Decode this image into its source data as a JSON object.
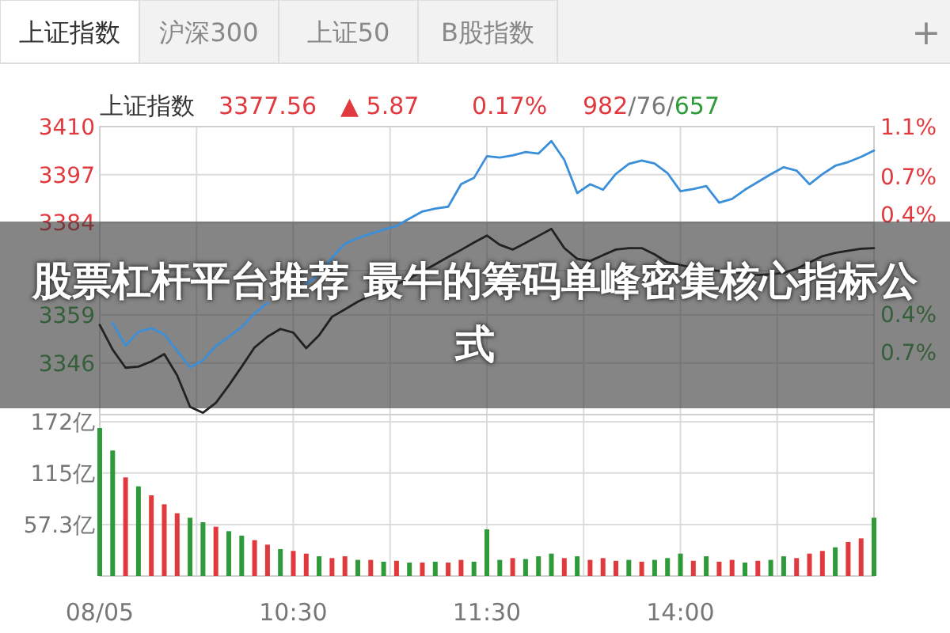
{
  "chart_data": [
    {
      "type": "line",
      "title": "股票杠杆平台推荐 最牛的筹码单峰密集核心指标公式",
      "annotations": [
        "上证指数",
        "沪深300",
        "上证50",
        "B股指数",
        "+",
        "上证指数",
        "3377.56",
        "▲ 5.87",
        "0.17%",
        "982/76/657"
      ],
      "series": [
        {
          "color": "#3b8fd9",
          "values": [
            null,
            3356.8,
            3350.7,
            3354.4,
            3355.4,
            3353.7,
            3349.3,
            3344.8,
            3346.7,
            3350.6,
            3353.1,
            3355.7,
            3359.4,
            3362.3,
            null,
            null,
            3367.4,
            3369.9,
            3374.5,
            3378.3,
            3379.8,
            3381.0,
            3382.1,
            3383.1,
            3385.1,
            3387.0,
            3387.8,
            3388.3,
            3394.4,
            3396.1,
            3402.0,
            3401.6,
            3402.2,
            3403.1,
            3402.7,
            3406.1,
            3401.0,
            3392.0,
            3394.4,
            3392.9,
            3397.2,
            3399.9,
            3400.8,
            3400.0,
            3397.4,
            3392.5,
            3393.1,
            3393.9,
            3389.4,
            3390.4,
            3392.9,
            3395.0,
            3397.1,
            3399.0,
            3398.1,
            3394.4,
            3397.1,
            3399.4,
            3400.4,
            3401.8,
            3403.5
          ]
        },
        {
          "color": "#222222",
          "values": [
            3356.3,
            3349.6,
            3344.7,
            3345.0,
            3346.4,
            3348.4,
            3342.6,
            3334.1,
            3332.5,
            3335.2,
            3339.9,
            3345.0,
            3350.2,
            3353.1,
            3355.2,
            3354.2,
            3350.0,
            3353.5,
            3358.5,
            3360.5,
            3362.6,
            3364.3,
            3365.8,
            3367.3,
            3368.9,
            3370.8,
            3372.7,
            3374.7,
            3376.6,
            3378.6,
            3380.5,
            3378.0,
            3376.7,
            3378.5,
            3380.4,
            3382.3,
            3377.1,
            3374.2,
            3373.6,
            3375.2,
            3376.7,
            3377.1,
            3377.1,
            3375.4,
            3373.2,
            3372.5,
            3371.8,
            3371.2,
            3370.9,
            3370.6,
            3370.2,
            3369.8,
            3370.0,
            3370.4,
            3371.5,
            3373.2,
            3374.9,
            3375.8,
            3376.4,
            3376.9,
            3377.1
          ]
        }
      ],
      "ylim": [
        3332,
        3410
      ],
      "yticks": [
        3410,
        3397,
        3384,
        {
          "value": 3371,
          "label": null
        },
        3359,
        3346
      ],
      "y2lim": [
        -1.2,
        1.1
      ],
      "y2ticks": [
        {
          "value": 1.1,
          "label": "1.1%"
        },
        {
          "value": 0.7,
          "label": "0.7%"
        },
        {
          "value": 0.4,
          "label": "0.4%"
        },
        {
          "value": -0.4,
          "label": "0.4%"
        },
        {
          "value": -0.7,
          "label": "0.7%"
        }
      ],
      "tick_labels": "y",
      "grid": true
    },
    {
      "type": "bar",
      "categories": [
        "08/05",
        null,
        null,
        null,
        null,
        null,
        null,
        null,
        null,
        null,
        null,
        null,
        null,
        null,
        null,
        "10:30",
        null,
        null,
        null,
        null,
        null,
        null,
        null,
        null,
        null,
        null,
        null,
        null,
        null,
        null,
        "11:30",
        null,
        null,
        null,
        null,
        null,
        null,
        null,
        null,
        null,
        null,
        null,
        null,
        null,
        null,
        "14:00",
        null,
        null,
        null,
        null,
        null,
        null,
        null,
        null,
        null,
        null,
        null,
        null,
        null,
        null,
        null
      ],
      "values": [
        165,
        140,
        110,
        100,
        90,
        80,
        70,
        65,
        60,
        55,
        50,
        45,
        40,
        35,
        30,
        28,
        25,
        22,
        20,
        22,
        18,
        18,
        16,
        17,
        15,
        15,
        16,
        15,
        18,
        16,
        52,
        18,
        20,
        19,
        22,
        25,
        20,
        22,
        18,
        20,
        17,
        18,
        16,
        18,
        20,
        25,
        17,
        22,
        16,
        18,
        15,
        17,
        18,
        22,
        20,
        25,
        28,
        32,
        38,
        42,
        65
      ],
      "colors": [
        "#2e9a3a",
        "#2e9a3a",
        "#e0393e",
        "#2e9a3a",
        "#e0393e",
        "#e0393e",
        "#e0393e",
        "#2e9a3a",
        "#2e9a3a",
        "#e0393e",
        "#2e9a3a",
        "#2e9a3a",
        "#e0393e",
        "#e0393e",
        "#2e9a3a",
        "#e0393e",
        "#e0393e",
        "#2e9a3a",
        "#e0393e",
        "#e0393e",
        "#2e9a3a",
        "#e0393e",
        "#2e9a3a",
        "#e0393e",
        "#2e9a3a",
        "#e0393e",
        "#2e9a3a",
        "#e0393e",
        "#e0393e",
        "#2e9a3a",
        "#2e9a3a",
        "#2e9a3a",
        "#e0393e",
        "#2e9a3a",
        "#2e9a3a",
        "#2e9a3a",
        "#e0393e",
        "#2e9a3a",
        "#e0393e",
        "#e0393e",
        "#e0393e",
        "#2e9a3a",
        "#e0393e",
        "#2e9a3a",
        "#2e9a3a",
        "#2e9a3a",
        "#e0393e",
        "#2e9a3a",
        "#e0393e",
        "#e0393e",
        "#2e9a3a",
        "#e0393e",
        "#2e9a3a",
        "#2e9a3a",
        "#e0393e",
        "#e0393e",
        "#e0393e",
        "#2e9a3a",
        "#e0393e",
        "#e0393e",
        "#2e9a3a"
      ],
      "ylim": [
        0,
        180
      ],
      "yticks": [
        {
          "value": 172,
          "label": "172亿"
        },
        {
          "value": 115,
          "label": "115亿"
        },
        {
          "value": 57.3,
          "label": "57.3亿"
        }
      ],
      "grid": true
    }
  ]
}
